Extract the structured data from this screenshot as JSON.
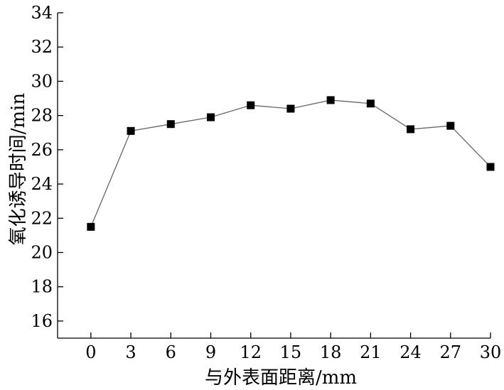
{
  "chart_data": {
    "type": "line",
    "xlabel": "与外表面距离/mm",
    "ylabel": "氧化诱导时间/min",
    "x": [
      0,
      3,
      6,
      9,
      12,
      15,
      18,
      21,
      24,
      27,
      30
    ],
    "series": [
      {
        "values": [
          21.5,
          27.1,
          27.5,
          27.9,
          28.6,
          28.4,
          28.9,
          28.7,
          27.2,
          27.4,
          25.0
        ]
      }
    ],
    "xlim": [
      -2.5,
      30
    ],
    "ylim": [
      15,
      34
    ],
    "xticks": [
      0,
      3,
      6,
      9,
      12,
      15,
      18,
      21,
      24,
      27,
      30
    ],
    "yticks": [
      16,
      18,
      20,
      22,
      24,
      26,
      28,
      30,
      32,
      34
    ],
    "grid": false,
    "marker": "square",
    "line_color": "#666666",
    "marker_color": "#000000"
  }
}
